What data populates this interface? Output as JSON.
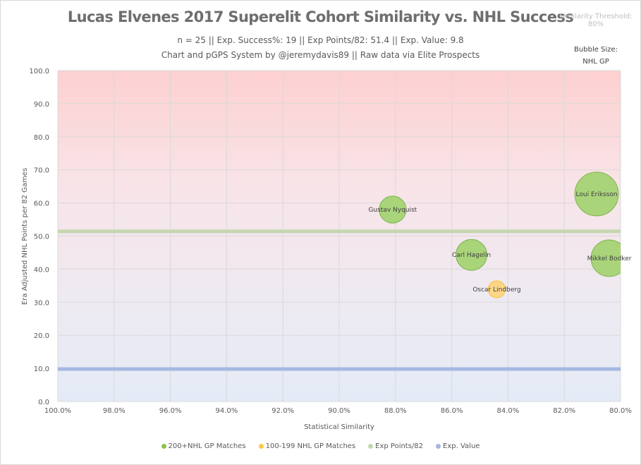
{
  "chart_data": {
    "type": "scatter",
    "title": "Lucas Elvenes 2017 Superelit Cohort Similarity vs. NHL Success",
    "subtitle1": "n = 25 || Exp. Success%: 19 || Exp Points/82: 51.4 || Exp. Value: 9.8",
    "subtitle2": "Chart and pGPS System by @jeremydavis89 || Raw data via Elite Prospects",
    "threshold_label": "Similarity Threshold:",
    "threshold_value": "80%",
    "bubble_size_label": "Bubble Size:",
    "bubble_size_value": "NHL GP",
    "xlabel": "Statistical Similarity",
    "ylabel": "Era Adjusted NHL Points per 82 Games",
    "xlim": [
      100,
      80
    ],
    "ylim": [
      0,
      100
    ],
    "x_ticks": [
      "100.0%",
      "98.0%",
      "96.0%",
      "94.0%",
      "92.0%",
      "90.0%",
      "88.0%",
      "86.0%",
      "84.0%",
      "82.0%",
      "80.0%"
    ],
    "y_ticks": [
      "0.0",
      "10.0",
      "20.0",
      "30.0",
      "40.0",
      "50.0",
      "60.0",
      "70.0",
      "80.0",
      "90.0",
      "100.0"
    ],
    "grid": true,
    "legend_position": "bottom",
    "legend": [
      "200+NHL GP Matches",
      "100-199 NHL GP Matches",
      "Exp Points/82",
      "Exp. Value"
    ],
    "colors": {
      "green": "#a9d47a",
      "green_edge": "#7fb44e",
      "yellow": "#fdd68a",
      "yellow_edge": "#f5c033",
      "exp_points": "#c5d6b0",
      "exp_value": "#a4b8e0"
    },
    "exp_points_82": 51.4,
    "exp_value": 9.8,
    "series": [
      {
        "name": "200+NHL GP Matches",
        "points": [
          {
            "label": "Gustav Nyquist",
            "x": 88.1,
            "y": 58.0,
            "gp": 380
          },
          {
            "label": "Loui Eriksson",
            "x": 80.85,
            "y": 62.7,
            "gp": 1000
          },
          {
            "label": "Carl Hagelin",
            "x": 85.3,
            "y": 44.3,
            "gp": 500
          },
          {
            "label": "Mikkel Bodker",
            "x": 80.4,
            "y": 43.3,
            "gp": 700
          }
        ]
      },
      {
        "name": "100-199 NHL GP Matches",
        "points": [
          {
            "label": "Oscar Lindberg",
            "x": 84.4,
            "y": 33.9,
            "gp": 150
          }
        ]
      }
    ]
  }
}
